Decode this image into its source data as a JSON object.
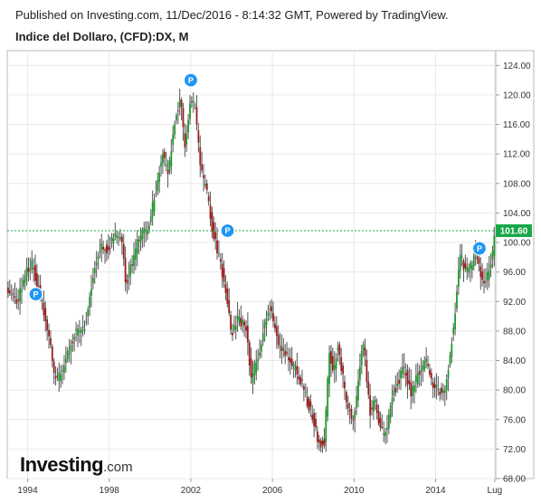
{
  "header": {
    "published": "Published on Investing.com, 11/Dec/2016 - 8:14:32 GMT, Powered by TradingView.",
    "instrument": "Indice del Dollaro, (CFD):DX, M"
  },
  "logo": {
    "main": "Investing",
    "suffix": ".com"
  },
  "colors": {
    "up": "#1f9a2e",
    "down": "#9b1c1c",
    "wick": "#555555",
    "marker": "#2196f3",
    "grid": "#e9e9e9",
    "price_line": "#18a84a"
  },
  "chart_data": {
    "type": "candlestick",
    "title": "Indice del Dollaro, (CFD):DX, M",
    "interval": "monthly",
    "ylim": [
      68,
      126
    ],
    "xlim": [
      1993.0,
      2016.95
    ],
    "y_ticks": [
      {
        "value": 68,
        "label": "68.00"
      },
      {
        "value": 72,
        "label": "72.00"
      },
      {
        "value": 76,
        "label": "76.00"
      },
      {
        "value": 80,
        "label": "80.00"
      },
      {
        "value": 84,
        "label": "84.00"
      },
      {
        "value": 88,
        "label": "88.00"
      },
      {
        "value": 92,
        "label": "92.00"
      },
      {
        "value": 96,
        "label": "96.00"
      },
      {
        "value": 100,
        "label": "100.00"
      },
      {
        "value": 104,
        "label": "104.00"
      },
      {
        "value": 108,
        "label": "108.00"
      },
      {
        "value": 112,
        "label": "112.00"
      },
      {
        "value": 116,
        "label": "116.00"
      },
      {
        "value": 120,
        "label": "120.00"
      },
      {
        "value": 124,
        "label": "124.00"
      }
    ],
    "x_ticks": [
      {
        "value": 1994,
        "label": "1994"
      },
      {
        "value": 1998,
        "label": "1998"
      },
      {
        "value": 2002,
        "label": "2002"
      },
      {
        "value": 2006,
        "label": "2006"
      },
      {
        "value": 2010,
        "label": "2010"
      },
      {
        "value": 2014,
        "label": "2014"
      },
      {
        "value": 2016.9,
        "label": "Lug"
      }
    ],
    "last_price": 101.6,
    "last_price_label": "101.60",
    "markers": [
      {
        "label": "P",
        "date": 1994.4,
        "price": 93.0
      },
      {
        "label": "P",
        "date": 2002.0,
        "price": 122.0
      },
      {
        "label": "P",
        "date": 2003.8,
        "price": 101.6
      },
      {
        "label": "P",
        "date": 2016.15,
        "price": 99.2
      }
    ],
    "close_series": [
      {
        "date": 1993.0,
        "close": 94.0
      },
      {
        "date": 1993.5,
        "close": 92.0
      },
      {
        "date": 1993.9,
        "close": 96.0
      },
      {
        "date": 1994.2,
        "close": 97.2
      },
      {
        "date": 1994.6,
        "close": 93.0
      },
      {
        "date": 1995.0,
        "close": 88.0
      },
      {
        "date": 1995.3,
        "close": 82.0
      },
      {
        "date": 1995.5,
        "close": 81.5
      },
      {
        "date": 1995.9,
        "close": 84.5
      },
      {
        "date": 1996.3,
        "close": 87.5
      },
      {
        "date": 1996.8,
        "close": 88.5
      },
      {
        "date": 1997.2,
        "close": 95.5
      },
      {
        "date": 1997.6,
        "close": 100.0
      },
      {
        "date": 1997.9,
        "close": 99.0
      },
      {
        "date": 1998.3,
        "close": 101.0
      },
      {
        "date": 1998.6,
        "close": 100.5
      },
      {
        "date": 1998.8,
        "close": 94.5
      },
      {
        "date": 1999.0,
        "close": 96.0
      },
      {
        "date": 1999.5,
        "close": 101.0
      },
      {
        "date": 1999.9,
        "close": 101.5
      },
      {
        "date": 2000.2,
        "close": 106.0
      },
      {
        "date": 2000.6,
        "close": 112.0
      },
      {
        "date": 2000.9,
        "close": 109.0
      },
      {
        "date": 2001.2,
        "close": 116.5
      },
      {
        "date": 2001.5,
        "close": 119.0
      },
      {
        "date": 2001.7,
        "close": 113.0
      },
      {
        "date": 2002.0,
        "close": 119.5
      },
      {
        "date": 2002.2,
        "close": 118.5
      },
      {
        "date": 2002.5,
        "close": 109.5
      },
      {
        "date": 2002.8,
        "close": 106.5
      },
      {
        "date": 2003.1,
        "close": 101.0
      },
      {
        "date": 2003.5,
        "close": 96.5
      },
      {
        "date": 2003.8,
        "close": 92.0
      },
      {
        "date": 2004.0,
        "close": 87.5
      },
      {
        "date": 2004.3,
        "close": 89.5
      },
      {
        "date": 2004.7,
        "close": 88.5
      },
      {
        "date": 2004.95,
        "close": 81.5
      },
      {
        "date": 2005.3,
        "close": 84.5
      },
      {
        "date": 2005.6,
        "close": 89.0
      },
      {
        "date": 2005.9,
        "close": 91.0
      },
      {
        "date": 2006.3,
        "close": 86.5
      },
      {
        "date": 2006.7,
        "close": 85.0
      },
      {
        "date": 2006.95,
        "close": 83.5
      },
      {
        "date": 2007.3,
        "close": 82.0
      },
      {
        "date": 2007.7,
        "close": 78.5
      },
      {
        "date": 2007.95,
        "close": 76.5
      },
      {
        "date": 2008.3,
        "close": 72.5
      },
      {
        "date": 2008.55,
        "close": 73.0
      },
      {
        "date": 2008.8,
        "close": 86.0
      },
      {
        "date": 2008.95,
        "close": 82.0
      },
      {
        "date": 2009.2,
        "close": 86.0
      },
      {
        "date": 2009.6,
        "close": 79.0
      },
      {
        "date": 2009.9,
        "close": 75.5
      },
      {
        "date": 2010.2,
        "close": 80.5
      },
      {
        "date": 2010.45,
        "close": 86.5
      },
      {
        "date": 2010.8,
        "close": 77.0
      },
      {
        "date": 2011.0,
        "close": 79.0
      },
      {
        "date": 2011.3,
        "close": 74.5
      },
      {
        "date": 2011.6,
        "close": 74.0
      },
      {
        "date": 2011.8,
        "close": 78.5
      },
      {
        "date": 2012.0,
        "close": 80.0
      },
      {
        "date": 2012.45,
        "close": 83.0
      },
      {
        "date": 2012.8,
        "close": 79.5
      },
      {
        "date": 2013.2,
        "close": 82.5
      },
      {
        "date": 2013.5,
        "close": 84.0
      },
      {
        "date": 2013.9,
        "close": 80.5
      },
      {
        "date": 2014.3,
        "close": 79.8
      },
      {
        "date": 2014.55,
        "close": 81.0
      },
      {
        "date": 2014.75,
        "close": 86.0
      },
      {
        "date": 2014.95,
        "close": 90.5
      },
      {
        "date": 2015.2,
        "close": 98.5
      },
      {
        "date": 2015.45,
        "close": 96.0
      },
      {
        "date": 2015.7,
        "close": 96.5
      },
      {
        "date": 2015.95,
        "close": 98.8
      },
      {
        "date": 2016.2,
        "close": 96.0
      },
      {
        "date": 2016.4,
        "close": 94.0
      },
      {
        "date": 2016.6,
        "close": 96.5
      },
      {
        "date": 2016.8,
        "close": 98.5
      },
      {
        "date": 2016.92,
        "close": 101.6
      }
    ]
  }
}
